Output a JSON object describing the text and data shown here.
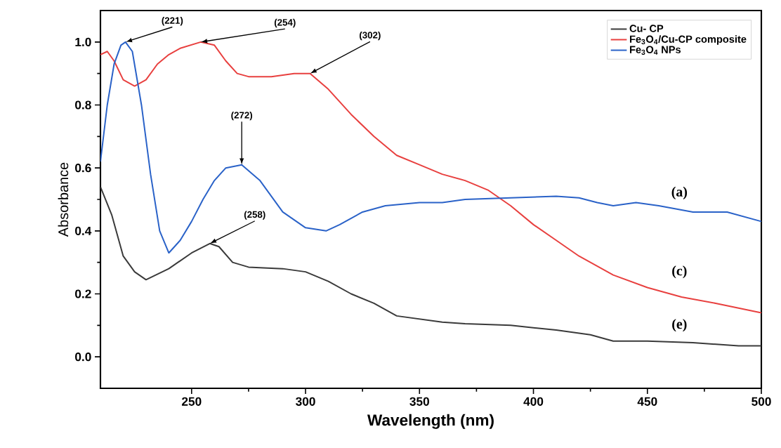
{
  "chart_data": {
    "type": "line",
    "xlabel": "Wavelength (nm)",
    "ylabel": "Absorbance",
    "xlim": [
      210,
      500
    ],
    "ylim": [
      -0.1,
      1.1
    ],
    "xticks": [
      250,
      300,
      350,
      400,
      450,
      500
    ],
    "yticks": [
      {
        "value": 0,
        "label": "0.0"
      },
      0.2,
      0.4,
      0.6,
      0.8,
      {
        "value": 1,
        "label": "1.0"
      }
    ],
    "legend": "top right",
    "marker": "none",
    "line_style": "solid",
    "grid": false,
    "series": [
      {
        "name": "Cu- CP",
        "color": "#3a3a3a",
        "x": [
          210,
          215,
          220,
          225,
          230,
          240,
          250,
          258,
          262,
          268,
          275,
          290,
          300,
          310,
          320,
          330,
          340,
          350,
          360,
          370,
          390,
          410,
          425,
          435,
          450,
          470,
          490,
          500
        ],
        "values": [
          0.54,
          0.45,
          0.32,
          0.27,
          0.245,
          0.28,
          0.33,
          0.36,
          0.35,
          0.3,
          0.285,
          0.28,
          0.27,
          0.24,
          0.2,
          0.17,
          0.13,
          0.12,
          0.11,
          0.105,
          0.1,
          0.085,
          0.07,
          0.05,
          0.05,
          0.045,
          0.035,
          0.035
        ]
      },
      {
        "name": "Fe$_{3}$O$_{4}$/Cu-CP composite",
        "color": "#e8403f",
        "x": [
          210,
          213,
          216,
          220,
          225,
          230,
          235,
          240,
          245,
          254,
          260,
          265,
          270,
          275,
          285,
          295,
          302,
          310,
          320,
          330,
          340,
          350,
          360,
          370,
          380,
          390,
          400,
          410,
          420,
          435,
          450,
          465,
          480,
          500
        ],
        "values": [
          0.96,
          0.97,
          0.94,
          0.88,
          0.86,
          0.88,
          0.93,
          0.96,
          0.98,
          1.0,
          0.99,
          0.94,
          0.9,
          0.89,
          0.89,
          0.9,
          0.9,
          0.85,
          0.77,
          0.7,
          0.64,
          0.61,
          0.58,
          0.56,
          0.53,
          0.48,
          0.42,
          0.37,
          0.32,
          0.26,
          0.22,
          0.19,
          0.17,
          0.14
        ]
      },
      {
        "name": "Fe$_{3}$O$_{4}$ NPs",
        "color": "#2a62c8",
        "x": [
          210,
          213,
          216,
          219,
          221,
          224,
          228,
          232,
          236,
          240,
          245,
          250,
          255,
          260,
          265,
          272,
          280,
          290,
          300,
          309,
          315,
          325,
          335,
          350,
          360,
          370,
          390,
          410,
          420,
          428,
          435,
          445,
          455,
          470,
          485,
          500
        ],
        "values": [
          0.62,
          0.8,
          0.93,
          0.99,
          1.0,
          0.97,
          0.8,
          0.58,
          0.4,
          0.33,
          0.37,
          0.43,
          0.5,
          0.56,
          0.6,
          0.61,
          0.56,
          0.46,
          0.41,
          0.4,
          0.42,
          0.46,
          0.48,
          0.49,
          0.49,
          0.5,
          0.505,
          0.51,
          0.505,
          0.49,
          0.48,
          0.49,
          0.48,
          0.46,
          0.46,
          0.43
        ]
      }
    ],
    "annotations": [
      {
        "text": "(221)",
        "x": 221,
        "y": 1.0
      },
      {
        "text": "(254)",
        "x": 254,
        "y": 1.0
      },
      {
        "text": "(302)",
        "x": 302,
        "y": 0.9
      },
      {
        "text": "(272)",
        "x": 272,
        "y": 0.61
      },
      {
        "text": "(258)",
        "x": 258,
        "y": 0.36
      },
      "(a)",
      "(c)",
      "(e)"
    ]
  }
}
